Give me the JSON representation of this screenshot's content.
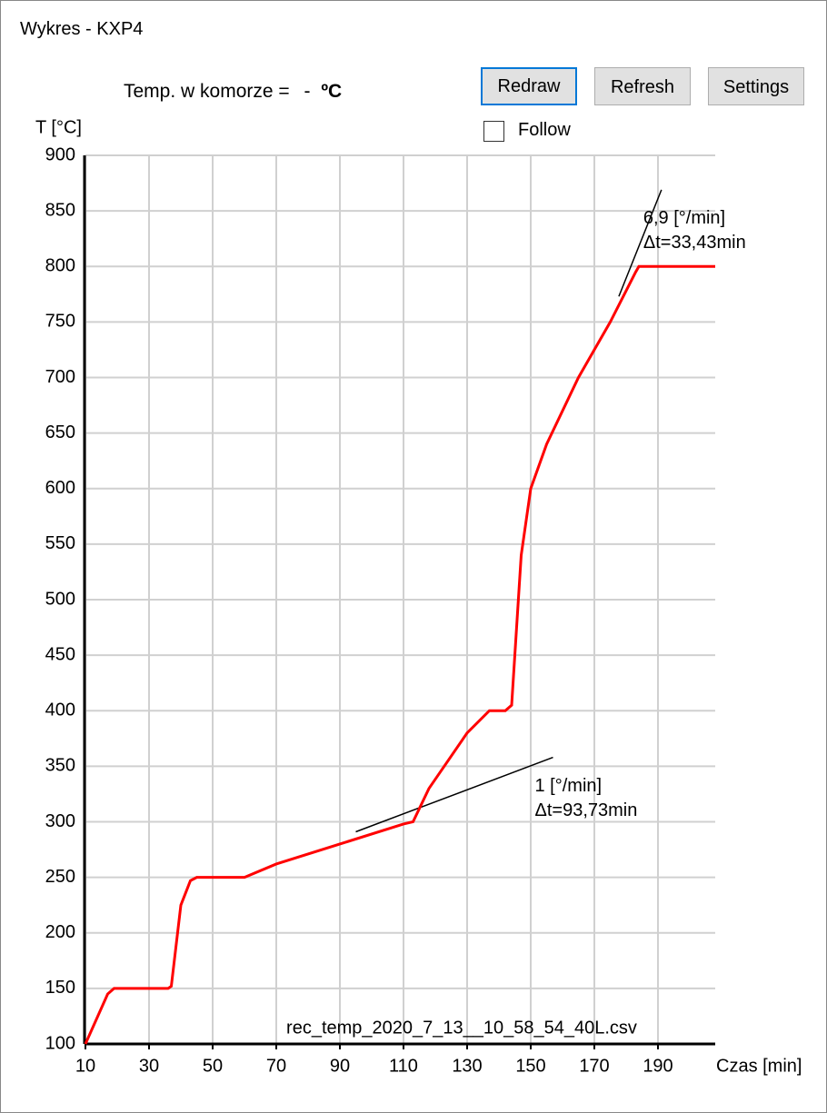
{
  "window": {
    "title": "Wykres - KXP4"
  },
  "header": {
    "label": "Temp. w komorze =",
    "value": "-",
    "unit": "ºC"
  },
  "buttons": [
    "Redraw",
    "Refresh",
    "Settings"
  ],
  "checkbox": {
    "label": "Follow"
  },
  "chart_data": {
    "type": "line",
    "y_label": "T [°C]",
    "x_label": "Czas [min]",
    "file_label": "rec_temp_2020_7_13__10_58_54_40L.csv",
    "x": [
      10,
      17,
      19,
      36,
      37,
      40,
      43,
      45,
      60,
      70,
      90,
      110,
      113,
      118,
      130,
      137,
      142,
      144,
      147,
      150,
      155,
      165,
      175,
      183,
      184,
      208
    ],
    "values": [
      100,
      145,
      150,
      150,
      152,
      225,
      247,
      250,
      250,
      262,
      280,
      298,
      300,
      330,
      380,
      400,
      400,
      405,
      540,
      600,
      640,
      700,
      750,
      795,
      800,
      800
    ],
    "color": "#ff0000",
    "tangents": [
      {
        "x": [
          95,
          157
        ],
        "y": [
          291,
          358
        ],
        "label": [
          "1 [°/min]",
          "Δt=93,73min"
        ]
      },
      {
        "x": [
          177.7,
          191.1
        ],
        "y": [
          773,
          869
        ],
        "label": [
          "6,9 [°/min]",
          "Δt=33,43min"
        ]
      }
    ],
    "xlim": [
      10,
      208
    ],
    "ylim": [
      100,
      900
    ],
    "xticks": [
      10,
      30,
      50,
      70,
      90,
      110,
      130,
      150,
      170,
      190
    ],
    "yticks": [
      100,
      150,
      200,
      250,
      300,
      350,
      400,
      450,
      500,
      550,
      600,
      650,
      700,
      750,
      800,
      850,
      900
    ],
    "grid": true
  }
}
